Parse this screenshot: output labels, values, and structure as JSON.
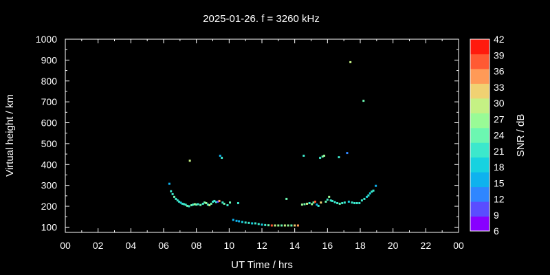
{
  "chart_data": {
    "type": "scatter",
    "title": "2025-01-26. f = 3260 kHz",
    "xlabel": "UT Time / hrs",
    "ylabel": "Virtual height / km",
    "xlim": [
      0,
      24
    ],
    "ylim": [
      75,
      1000
    ],
    "xticks": [
      "00",
      "02",
      "04",
      "06",
      "08",
      "10",
      "12",
      "14",
      "16",
      "18",
      "20",
      "22",
      "00"
    ],
    "yticks": [
      100,
      200,
      300,
      400,
      500,
      600,
      700,
      800,
      900,
      1000
    ],
    "grid": false,
    "colorbar": {
      "label": "SNR / dB",
      "min": 6,
      "max": 42,
      "ticks": [
        6,
        9,
        12,
        15,
        18,
        21,
        24,
        27,
        30,
        33,
        36,
        39,
        42
      ],
      "colors": [
        "#8800ff",
        "#5a4dff",
        "#2f86ff",
        "#0fb2ee",
        "#17d2e0",
        "#3ce8cc",
        "#6cf7b1",
        "#99fb96",
        "#c5f184",
        "#f0d172",
        "#ff9a57",
        "#ff5a33",
        "#ff1a0d"
      ]
    },
    "points": [
      {
        "x": 6.35,
        "y": 308,
        "snr": 15
      },
      {
        "x": 6.45,
        "y": 272,
        "snr": 20
      },
      {
        "x": 6.55,
        "y": 258,
        "snr": 22
      },
      {
        "x": 6.65,
        "y": 245,
        "snr": 23
      },
      {
        "x": 6.75,
        "y": 235,
        "snr": 21
      },
      {
        "x": 6.85,
        "y": 228,
        "snr": 20
      },
      {
        "x": 6.95,
        "y": 222,
        "snr": 22
      },
      {
        "x": 7.05,
        "y": 217,
        "snr": 19
      },
      {
        "x": 7.15,
        "y": 212,
        "snr": 20
      },
      {
        "x": 7.25,
        "y": 210,
        "snr": 21
      },
      {
        "x": 7.35,
        "y": 207,
        "snr": 22
      },
      {
        "x": 7.45,
        "y": 202,
        "snr": 23
      },
      {
        "x": 7.55,
        "y": 200,
        "snr": 20
      },
      {
        "x": 7.6,
        "y": 418,
        "snr": 30
      },
      {
        "x": 7.7,
        "y": 205,
        "snr": 25
      },
      {
        "x": 7.8,
        "y": 208,
        "snr": 22
      },
      {
        "x": 7.9,
        "y": 210,
        "snr": 28
      },
      {
        "x": 8.0,
        "y": 208,
        "snr": 24
      },
      {
        "x": 8.1,
        "y": 210,
        "snr": 21
      },
      {
        "x": 8.25,
        "y": 206,
        "snr": 23
      },
      {
        "x": 8.4,
        "y": 212,
        "snr": 22
      },
      {
        "x": 8.5,
        "y": 218,
        "snr": 25
      },
      {
        "x": 8.6,
        "y": 215,
        "snr": 27
      },
      {
        "x": 8.7,
        "y": 208,
        "snr": 22
      },
      {
        "x": 8.8,
        "y": 205,
        "snr": 30
      },
      {
        "x": 8.9,
        "y": 212,
        "snr": 24
      },
      {
        "x": 9.0,
        "y": 222,
        "snr": 22
      },
      {
        "x": 9.1,
        "y": 225,
        "snr": 20
      },
      {
        "x": 9.2,
        "y": 220,
        "snr": 22
      },
      {
        "x": 9.3,
        "y": 222,
        "snr": 10
      },
      {
        "x": 9.4,
        "y": 225,
        "snr": 35
      },
      {
        "x": 9.45,
        "y": 442,
        "snr": 15
      },
      {
        "x": 9.55,
        "y": 432,
        "snr": 20
      },
      {
        "x": 9.6,
        "y": 218,
        "snr": 21
      },
      {
        "x": 9.7,
        "y": 212,
        "snr": 24
      },
      {
        "x": 9.9,
        "y": 205,
        "snr": 22
      },
      {
        "x": 10.05,
        "y": 218,
        "snr": 24
      },
      {
        "x": 10.25,
        "y": 135,
        "snr": 14
      },
      {
        "x": 10.45,
        "y": 130,
        "snr": 16
      },
      {
        "x": 10.55,
        "y": 215,
        "snr": 22
      },
      {
        "x": 10.6,
        "y": 128,
        "snr": 15
      },
      {
        "x": 10.8,
        "y": 125,
        "snr": 18
      },
      {
        "x": 11.0,
        "y": 122,
        "snr": 20
      },
      {
        "x": 11.2,
        "y": 120,
        "snr": 22
      },
      {
        "x": 11.4,
        "y": 118,
        "snr": 18
      },
      {
        "x": 11.6,
        "y": 118,
        "snr": 22
      },
      {
        "x": 11.8,
        "y": 115,
        "snr": 20
      },
      {
        "x": 12.0,
        "y": 112,
        "snr": 18
      },
      {
        "x": 12.2,
        "y": 110,
        "snr": 22
      },
      {
        "x": 12.4,
        "y": 109,
        "snr": 25
      },
      {
        "x": 12.6,
        "y": 108,
        "snr": 38
      },
      {
        "x": 12.8,
        "y": 108,
        "snr": 30
      },
      {
        "x": 13.0,
        "y": 108,
        "snr": 27
      },
      {
        "x": 13.2,
        "y": 108,
        "snr": 24
      },
      {
        "x": 13.4,
        "y": 108,
        "snr": 30
      },
      {
        "x": 13.5,
        "y": 235,
        "snr": 24
      },
      {
        "x": 13.6,
        "y": 108,
        "snr": 27
      },
      {
        "x": 13.8,
        "y": 108,
        "snr": 25
      },
      {
        "x": 14.0,
        "y": 108,
        "snr": 32
      },
      {
        "x": 14.2,
        "y": 108,
        "snr": 36
      },
      {
        "x": 14.45,
        "y": 208,
        "snr": 27
      },
      {
        "x": 14.55,
        "y": 442,
        "snr": 20
      },
      {
        "x": 14.6,
        "y": 210,
        "snr": 24
      },
      {
        "x": 14.75,
        "y": 212,
        "snr": 30
      },
      {
        "x": 14.9,
        "y": 215,
        "snr": 22
      },
      {
        "x": 15.05,
        "y": 210,
        "snr": 27
      },
      {
        "x": 15.15,
        "y": 218,
        "snr": 25
      },
      {
        "x": 15.25,
        "y": 222,
        "snr": 38
      },
      {
        "x": 15.35,
        "y": 208,
        "snr": 15
      },
      {
        "x": 15.45,
        "y": 202,
        "snr": 20
      },
      {
        "x": 15.55,
        "y": 432,
        "snr": 22
      },
      {
        "x": 15.6,
        "y": 218,
        "snr": 33
      },
      {
        "x": 15.7,
        "y": 438,
        "snr": 25
      },
      {
        "x": 15.8,
        "y": 442,
        "snr": 27
      },
      {
        "x": 15.9,
        "y": 222,
        "snr": 24
      },
      {
        "x": 16.0,
        "y": 232,
        "snr": 22
      },
      {
        "x": 16.1,
        "y": 245,
        "snr": 27
      },
      {
        "x": 16.2,
        "y": 228,
        "snr": 22
      },
      {
        "x": 16.3,
        "y": 225,
        "snr": 20
      },
      {
        "x": 16.45,
        "y": 220,
        "snr": 21
      },
      {
        "x": 16.6,
        "y": 215,
        "snr": 22
      },
      {
        "x": 16.7,
        "y": 435,
        "snr": 21
      },
      {
        "x": 16.75,
        "y": 212,
        "snr": 24
      },
      {
        "x": 16.9,
        "y": 215,
        "snr": 22
      },
      {
        "x": 17.05,
        "y": 218,
        "snr": 20
      },
      {
        "x": 17.2,
        "y": 455,
        "snr": 13
      },
      {
        "x": 17.3,
        "y": 222,
        "snr": 18
      },
      {
        "x": 17.4,
        "y": 890,
        "snr": 30
      },
      {
        "x": 17.5,
        "y": 218,
        "snr": 20
      },
      {
        "x": 17.65,
        "y": 215,
        "snr": 21
      },
      {
        "x": 17.8,
        "y": 215,
        "snr": 22
      },
      {
        "x": 17.95,
        "y": 215,
        "snr": 20
      },
      {
        "x": 18.1,
        "y": 228,
        "snr": 21
      },
      {
        "x": 18.2,
        "y": 705,
        "snr": 24
      },
      {
        "x": 18.25,
        "y": 235,
        "snr": 20
      },
      {
        "x": 18.4,
        "y": 245,
        "snr": 18
      },
      {
        "x": 18.5,
        "y": 252,
        "snr": 20
      },
      {
        "x": 18.6,
        "y": 262,
        "snr": 18
      },
      {
        "x": 18.7,
        "y": 270,
        "snr": 21
      },
      {
        "x": 18.8,
        "y": 275,
        "snr": 20
      },
      {
        "x": 18.95,
        "y": 298,
        "snr": 15
      }
    ]
  }
}
